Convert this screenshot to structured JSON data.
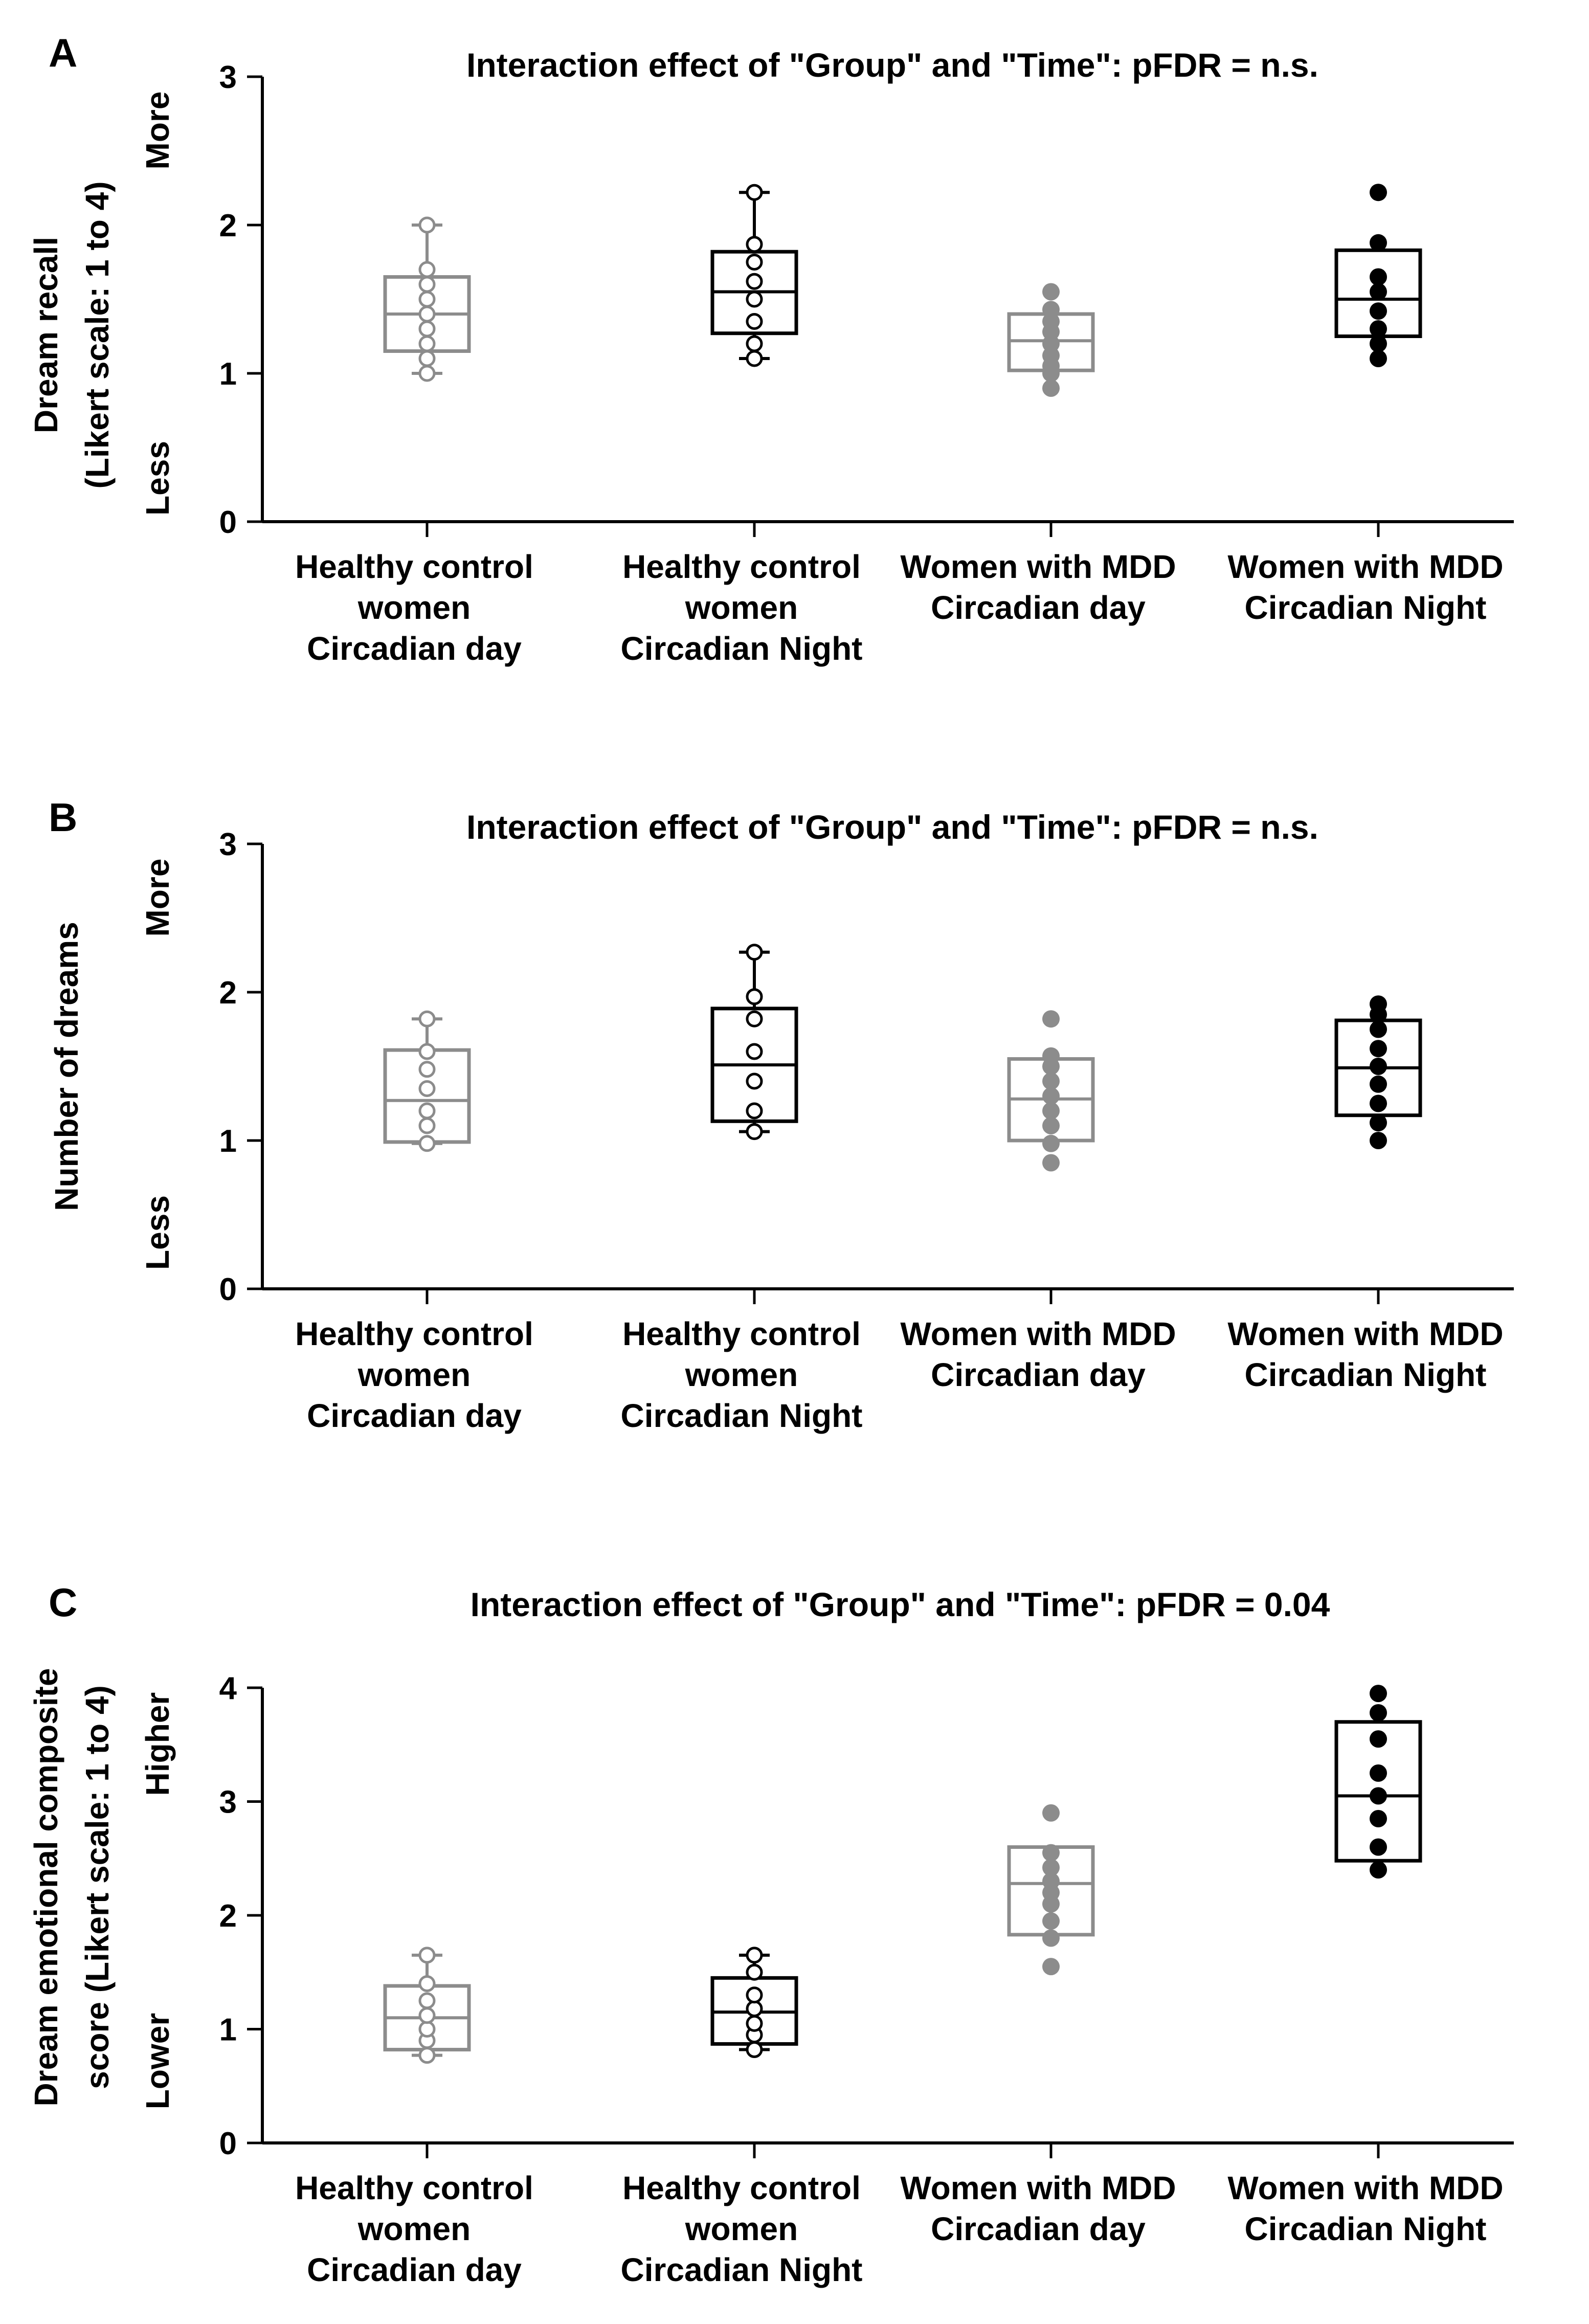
{
  "colors": {
    "control": "#8c8c8c",
    "mdd": "#000000",
    "axis": "#000000"
  },
  "categories": [
    [
      "Healthy control",
      "women",
      "Circadian day"
    ],
    [
      "Healthy control",
      "women",
      "Circadian Night"
    ],
    [
      "Women with MDD",
      "Circadian day"
    ],
    [
      "Women with MDD",
      "Circadian Night"
    ]
  ],
  "chart_data": [
    {
      "type": "box",
      "panel_label": "A",
      "title": "Interaction effect of \"Group\" and \"Time\": pFDR = n.s.",
      "ylabel": [
        "Dream recall",
        "(Likert scale: 1 to 4)"
      ],
      "ylabel_extra": {
        "high": "More",
        "low": "Less"
      },
      "ylim": [
        0,
        3
      ],
      "yticks": [
        "0",
        "1",
        "2",
        "3"
      ],
      "series": [
        {
          "category": 0,
          "q1": 1.15,
          "median": 1.4,
          "q3": 1.65,
          "whisker_low": 1.0,
          "whisker_high": 2.0,
          "marker": "open",
          "color": "control",
          "points": [
            1.0,
            1.1,
            1.2,
            1.3,
            1.4,
            1.5,
            1.6,
            1.7,
            2.0
          ]
        },
        {
          "category": 1,
          "q1": 1.27,
          "median": 1.55,
          "q3": 1.82,
          "whisker_low": 1.1,
          "whisker_high": 2.22,
          "marker": "open",
          "color": "mdd",
          "points": [
            1.1,
            1.2,
            1.35,
            1.5,
            1.62,
            1.75,
            1.87,
            2.22
          ]
        },
        {
          "category": 2,
          "q1": 1.02,
          "median": 1.22,
          "q3": 1.4,
          "marker": "filled",
          "color": "control",
          "points": [
            0.9,
            1.0,
            1.05,
            1.12,
            1.2,
            1.28,
            1.35,
            1.43,
            1.55
          ]
        },
        {
          "category": 3,
          "q1": 1.25,
          "median": 1.5,
          "q3": 1.83,
          "marker": "filled",
          "color": "mdd",
          "points": [
            1.1,
            1.2,
            1.3,
            1.42,
            1.55,
            1.65,
            1.88,
            2.22
          ]
        }
      ]
    },
    {
      "type": "box",
      "panel_label": "B",
      "title": "Interaction effect of \"Group\" and \"Time\": pFDR = n.s.",
      "ylabel": [
        "Number of dreams"
      ],
      "ylabel_extra": {
        "high": "More",
        "low": "Less"
      },
      "ylim": [
        0,
        3
      ],
      "yticks": [
        "0",
        "1",
        "2",
        "3"
      ],
      "series": [
        {
          "category": 0,
          "q1": 0.99,
          "median": 1.27,
          "q3": 1.61,
          "whisker_low": 0.98,
          "whisker_high": 1.82,
          "marker": "open",
          "color": "control",
          "points": [
            0.98,
            1.1,
            1.2,
            1.35,
            1.48,
            1.6,
            1.82
          ]
        },
        {
          "category": 1,
          "q1": 1.13,
          "median": 1.51,
          "q3": 1.89,
          "whisker_low": 1.06,
          "whisker_high": 2.27,
          "marker": "open",
          "color": "mdd",
          "points": [
            1.06,
            1.2,
            1.4,
            1.6,
            1.82,
            1.97,
            2.27
          ]
        },
        {
          "category": 2,
          "q1": 1.0,
          "median": 1.28,
          "q3": 1.55,
          "marker": "filled",
          "color": "control",
          "points": [
            0.85,
            0.98,
            1.1,
            1.2,
            1.3,
            1.4,
            1.5,
            1.57,
            1.82
          ]
        },
        {
          "category": 3,
          "q1": 1.17,
          "median": 1.49,
          "q3": 1.81,
          "marker": "filled",
          "color": "mdd",
          "points": [
            1.0,
            1.12,
            1.25,
            1.38,
            1.5,
            1.62,
            1.75,
            1.85,
            1.92
          ]
        }
      ]
    },
    {
      "type": "box",
      "panel_label": "C",
      "title": "Interaction effect of \"Group\" and \"Time\": pFDR = 0.04",
      "ylabel": [
        "Dream emotional composite",
        "score (Likert scale: 1 to 4)"
      ],
      "ylabel_extra": {
        "high": "Higher",
        "low": "Lower"
      },
      "ylim": [
        0,
        4
      ],
      "yticks": [
        "0",
        "1",
        "2",
        "3",
        "4"
      ],
      "series": [
        {
          "category": 0,
          "q1": 0.82,
          "median": 1.1,
          "q3": 1.38,
          "whisker_low": 0.77,
          "whisker_high": 1.65,
          "marker": "open",
          "color": "control",
          "points": [
            0.77,
            0.9,
            1.0,
            1.12,
            1.25,
            1.4,
            1.65
          ]
        },
        {
          "category": 1,
          "q1": 0.87,
          "median": 1.15,
          "q3": 1.45,
          "whisker_low": 0.82,
          "whisker_high": 1.65,
          "marker": "open",
          "color": "mdd",
          "points": [
            0.82,
            0.95,
            1.05,
            1.18,
            1.3,
            1.5,
            1.65
          ]
        },
        {
          "category": 2,
          "q1": 1.83,
          "median": 2.28,
          "q3": 2.6,
          "marker": "filled",
          "color": "control",
          "points": [
            1.55,
            1.8,
            1.95,
            2.1,
            2.2,
            2.3,
            2.42,
            2.55,
            2.9
          ]
        },
        {
          "category": 3,
          "q1": 2.48,
          "median": 3.05,
          "q3": 3.7,
          "marker": "filled",
          "color": "mdd",
          "points": [
            2.4,
            2.6,
            2.85,
            3.05,
            3.25,
            3.55,
            3.78,
            3.95
          ]
        }
      ]
    }
  ]
}
